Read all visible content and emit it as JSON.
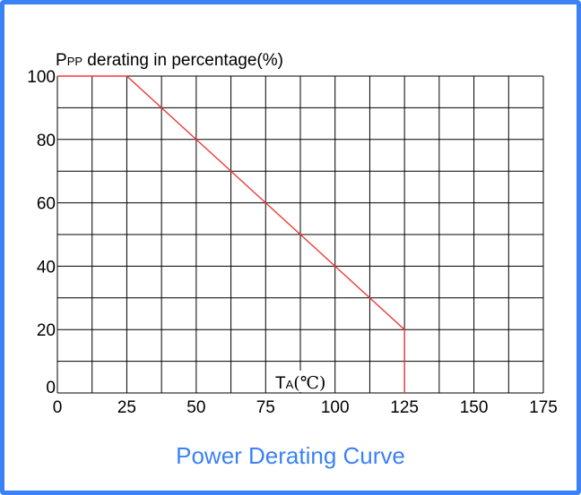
{
  "colors": {
    "frame": "#3b82f6",
    "caption": "#3b82f6",
    "curve": "#f03a3a",
    "grid": "#000000"
  },
  "chart_data": {
    "type": "line",
    "ylabel_main": "P",
    "ylabel_sub": "PP",
    "ylabel_rest": " derating in percentage(%)",
    "xlabel_main": "T",
    "xlabel_sub": "A",
    "xlabel_rest": "(℃)",
    "caption": "Power Derating Curve",
    "xlim": [
      0,
      175
    ],
    "ylim": [
      0,
      100
    ],
    "x_ticks": [
      0,
      25,
      50,
      75,
      100,
      125,
      150,
      175
    ],
    "y_ticks": [
      0,
      20,
      40,
      60,
      80,
      100
    ],
    "x_tick_labels": [
      "0",
      "25",
      "50",
      "75",
      "100",
      "125",
      "150",
      "175"
    ],
    "y_tick_labels": [
      "0",
      "20",
      "40",
      "60",
      "80",
      "100"
    ],
    "grid": true,
    "grid_x_step": 12.5,
    "grid_y_step": 10,
    "series": [
      {
        "x": [
          0,
          25,
          125,
          125
        ],
        "y": [
          100,
          100,
          20,
          0
        ]
      }
    ]
  }
}
